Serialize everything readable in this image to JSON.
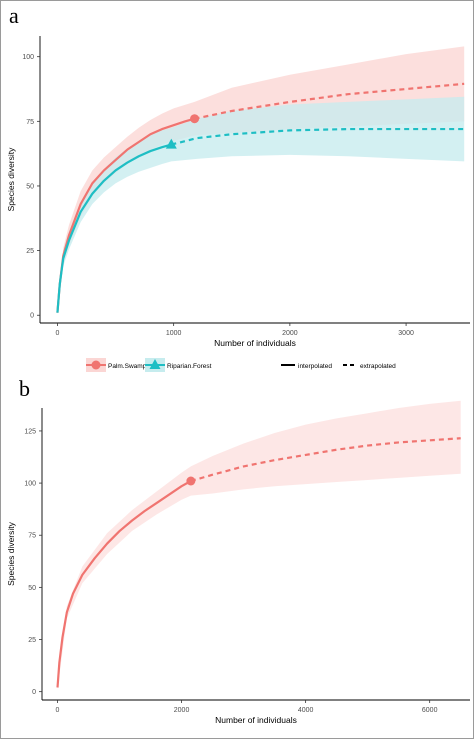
{
  "panels": {
    "a": {
      "letter": "a"
    },
    "b": {
      "letter": "b"
    }
  },
  "chart_data": [
    {
      "type": "line",
      "panel": "a",
      "xlabel": "Number of individuals",
      "ylabel": "Species diversity",
      "xlim": [
        -150,
        3550
      ],
      "ylim": [
        -3,
        108
      ],
      "xticks": [
        0,
        1000,
        2000,
        3000
      ],
      "yticks": [
        0,
        25,
        50,
        75,
        100
      ],
      "grid": false,
      "legend_position": "bottom",
      "legend": {
        "series": [
          "Palm.Swamp",
          "Riparian.Forest"
        ],
        "methods": [
          "interpolated",
          "extrapolated"
        ]
      },
      "series": [
        {
          "name": "Palm.Swamp",
          "color": "#F07470",
          "ribbon_color": "#FBD6D4",
          "marker": "circle",
          "observed": {
            "x": 1180,
            "y": 76
          },
          "interpolated": [
            [
              0,
              1
            ],
            [
              20,
              12
            ],
            [
              50,
              23
            ],
            [
              100,
              31
            ],
            [
              200,
              43
            ],
            [
              300,
              51
            ],
            [
              400,
              56
            ],
            [
              500,
              60
            ],
            [
              600,
              64
            ],
            [
              700,
              67
            ],
            [
              800,
              70
            ],
            [
              900,
              72
            ],
            [
              1000,
              73.5
            ],
            [
              1100,
              75
            ],
            [
              1180,
              76
            ]
          ],
          "extrapolated": [
            [
              1180,
              76
            ],
            [
              1500,
              79
            ],
            [
              2000,
              82.5
            ],
            [
              2500,
              85.5
            ],
            [
              3000,
              87.5
            ],
            [
              3500,
              89.5
            ]
          ],
          "ribbon": [
            [
              0,
              0.5,
              1.5
            ],
            [
              50,
              20,
              26
            ],
            [
              100,
              27,
              35
            ],
            [
              200,
              38,
              48
            ],
            [
              300,
              46,
              56
            ],
            [
              400,
              51,
              61
            ],
            [
              500,
              55,
              65
            ],
            [
              600,
              58.5,
              69
            ],
            [
              700,
              61.5,
              72.5
            ],
            [
              800,
              64,
              75.5
            ],
            [
              900,
              66,
              78
            ],
            [
              1000,
              67.5,
              80
            ],
            [
              1180,
              69.5,
              82.5
            ],
            [
              1500,
              70.5,
              88
            ],
            [
              2000,
              72,
              93
            ],
            [
              2500,
              73,
              97
            ],
            [
              3000,
              74,
              101
            ],
            [
              3500,
              75,
              104
            ]
          ]
        },
        {
          "name": "Riparian.Forest",
          "color": "#1EBEC4",
          "ribbon_color": "#C6ECEE",
          "marker": "triangle",
          "observed": {
            "x": 980,
            "y": 66
          },
          "interpolated": [
            [
              0,
              1
            ],
            [
              20,
              12
            ],
            [
              50,
              22
            ],
            [
              100,
              29
            ],
            [
              200,
              40
            ],
            [
              300,
              47
            ],
            [
              400,
              52
            ],
            [
              500,
              56
            ],
            [
              600,
              59
            ],
            [
              700,
              61.5
            ],
            [
              800,
              63.5
            ],
            [
              900,
              65
            ],
            [
              980,
              66
            ]
          ],
          "extrapolated": [
            [
              980,
              66
            ],
            [
              1200,
              68.5
            ],
            [
              1500,
              70
            ],
            [
              2000,
              71.5
            ],
            [
              2500,
              72
            ],
            [
              3000,
              72
            ],
            [
              3500,
              72
            ]
          ],
          "ribbon": [
            [
              0,
              0.5,
              1.5
            ],
            [
              50,
              19,
              25
            ],
            [
              100,
              25.5,
              32.5
            ],
            [
              200,
              36,
              44
            ],
            [
              300,
              43,
              51
            ],
            [
              400,
              47.5,
              56.5
            ],
            [
              500,
              51,
              61
            ],
            [
              600,
              53.5,
              64.5
            ],
            [
              700,
              55.5,
              67.5
            ],
            [
              800,
              57,
              70
            ],
            [
              900,
              58.5,
              71.5
            ],
            [
              980,
              59.5,
              72.5
            ],
            [
              1200,
              60.5,
              76
            ],
            [
              1500,
              61.5,
              79
            ],
            [
              2000,
              62,
              81.5
            ],
            [
              2500,
              61.5,
              82.5
            ],
            [
              3000,
              60.5,
              83.5
            ],
            [
              3500,
              59.5,
              84.5
            ]
          ]
        }
      ]
    },
    {
      "type": "line",
      "panel": "b",
      "xlabel": "Number of individuals",
      "ylabel": "Species diversity",
      "xlim": [
        -250,
        6650
      ],
      "ylim": [
        -4,
        136
      ],
      "xticks": [
        0,
        2000,
        4000,
        6000
      ],
      "yticks": [
        0,
        25,
        50,
        75,
        100,
        125
      ],
      "grid": false,
      "series": [
        {
          "name": "",
          "color": "#F07470",
          "ribbon_color": "#FDE0DF",
          "marker": "circle",
          "observed": {
            "x": 2150,
            "y": 101
          },
          "interpolated": [
            [
              0,
              2
            ],
            [
              30,
              14
            ],
            [
              80,
              26
            ],
            [
              150,
              38
            ],
            [
              250,
              47
            ],
            [
              400,
              56
            ],
            [
              600,
              64
            ],
            [
              800,
              71
            ],
            [
              1000,
              77
            ],
            [
              1200,
              82
            ],
            [
              1400,
              86.5
            ],
            [
              1600,
              90.5
            ],
            [
              1800,
              94.5
            ],
            [
              2000,
              98.5
            ],
            [
              2150,
              101
            ]
          ],
          "extrapolated": [
            [
              2150,
              101
            ],
            [
              2500,
              104
            ],
            [
              3000,
              108
            ],
            [
              3500,
              111
            ],
            [
              4000,
              113.5
            ],
            [
              4500,
              116
            ],
            [
              5000,
              118
            ],
            [
              5500,
              119.5
            ],
            [
              6000,
              120.5
            ],
            [
              6500,
              121.5
            ]
          ],
          "ribbon": [
            [
              0,
              1,
              3
            ],
            [
              150,
              35,
              41
            ],
            [
              400,
              52,
              60
            ],
            [
              800,
              66,
              76
            ],
            [
              1200,
              77,
              87
            ],
            [
              1600,
              85,
              96
            ],
            [
              2000,
              92,
              105
            ],
            [
              2150,
              94,
              108
            ],
            [
              2500,
              95,
              113
            ],
            [
              3000,
              97,
              119
            ],
            [
              3500,
              98.5,
              124
            ],
            [
              4000,
              99.5,
              128
            ],
            [
              4500,
              100.5,
              131
            ],
            [
              5000,
              101.5,
              133.5
            ],
            [
              5500,
              102.5,
              136
            ],
            [
              6000,
              103.5,
              138
            ],
            [
              6500,
              104.5,
              139.5
            ]
          ]
        }
      ]
    }
  ]
}
